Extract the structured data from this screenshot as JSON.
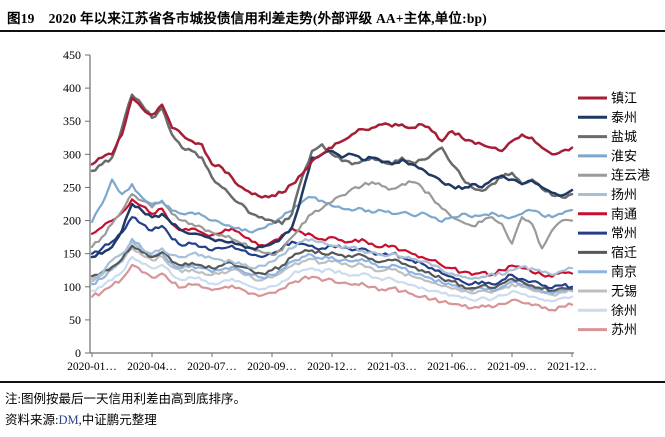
{
  "header": {
    "figure_no": "图19",
    "title": "2020 年以来江苏省各市城投债信用利差走势(外部评级 AA+主体,单位:bp)"
  },
  "footer": {
    "note": "注:图例按最后一天信用利差由高到底排序。",
    "source_prefix": "资料来源:",
    "source_dm": "DM",
    "source_suffix": ",中证鹏元整理"
  },
  "chart_data": {
    "type": "line",
    "title": "2020 年以来江苏省各市城投债信用利差走势(外部评级 AA+主体,单位:bp)",
    "ylabel": "bp",
    "ylim": [
      0,
      450
    ],
    "ytick_interval": 50,
    "grid": false,
    "legend_position": "right",
    "legend_sort": "按最后一天信用利差由高到低",
    "x_description": "49 个半月采样点,自 2020-01 至 2021-12",
    "x_tick_labels": [
      "2020-01…",
      "2020-04…",
      "2020-07…",
      "2020-09…",
      "2020-12…",
      "2021-03…",
      "2021-06…",
      "2021-09…",
      "2021-12…"
    ],
    "series": [
      {
        "key": "zhenjiang",
        "name": "镇江",
        "color": "#A51E36",
        "values": [
          285,
          295,
          300,
          330,
          385,
          370,
          360,
          375,
          340,
          330,
          320,
          315,
          285,
          280,
          265,
          250,
          240,
          235,
          238,
          242,
          255,
          270,
          290,
          300,
          310,
          320,
          330,
          338,
          340,
          345,
          342,
          345,
          340,
          345,
          335,
          320,
          335,
          325,
          320,
          315,
          310,
          305,
          320,
          330,
          325,
          310,
          300,
          305,
          310
        ]
      },
      {
        "key": "taizhou",
        "name": "泰州",
        "color": "#1F3864",
        "values": [
          145,
          150,
          160,
          185,
          225,
          215,
          205,
          210,
          195,
          185,
          180,
          178,
          172,
          170,
          168,
          163,
          158,
          160,
          165,
          175,
          190,
          240,
          295,
          300,
          305,
          295,
          300,
          292,
          295,
          288,
          285,
          292,
          285,
          278,
          268,
          258,
          252,
          248,
          255,
          250,
          262,
          268,
          262,
          255,
          260,
          250,
          242,
          238,
          246
        ]
      },
      {
        "key": "yancheng",
        "name": "盐城",
        "color": "#6B6B6B",
        "values": [
          275,
          285,
          295,
          340,
          390,
          375,
          355,
          370,
          330,
          310,
          305,
          295,
          265,
          250,
          235,
          225,
          210,
          205,
          200,
          195,
          210,
          265,
          305,
          315,
          300,
          290,
          285,
          290,
          295,
          290,
          285,
          295,
          288,
          292,
          300,
          310,
          285,
          265,
          250,
          245,
          255,
          265,
          272,
          255,
          262,
          248,
          238,
          235,
          240
        ]
      },
      {
        "key": "huaian",
        "name": "淮安",
        "color": "#7DA7CC",
        "values": [
          198,
          225,
          262,
          240,
          255,
          235,
          225,
          230,
          215,
          210,
          212,
          208,
          200,
          195,
          190,
          185,
          182,
          188,
          195,
          205,
          215,
          228,
          235,
          230,
          222,
          218,
          215,
          218,
          212,
          215,
          210,
          212,
          208,
          212,
          205,
          198,
          205,
          210,
          205,
          208,
          212,
          208,
          205,
          210,
          215,
          208,
          205,
          210,
          216
        ]
      },
      {
        "key": "lianyungang",
        "name": "连云港",
        "color": "#9A9A9A",
        "values": [
          160,
          175,
          195,
          215,
          240,
          230,
          220,
          228,
          210,
          200,
          195,
          190,
          182,
          178,
          172,
          165,
          158,
          152,
          148,
          155,
          175,
          195,
          210,
          218,
          228,
          238,
          248,
          252,
          258,
          252,
          248,
          255,
          258,
          250,
          235,
          218,
          205,
          198,
          192,
          198,
          205,
          195,
          165,
          205,
          195,
          158,
          185,
          200,
          200
        ]
      },
      {
        "key": "yangzhou",
        "name": "扬州",
        "color": "#A8C0D6",
        "values": [
          108,
          120,
          140,
          150,
          168,
          158,
          150,
          158,
          148,
          145,
          150,
          148,
          143,
          140,
          138,
          133,
          128,
          132,
          138,
          148,
          158,
          168,
          172,
          168,
          162,
          158,
          160,
          155,
          152,
          148,
          150,
          145,
          142,
          138,
          132,
          125,
          120,
          115,
          112,
          115,
          120,
          118,
          125,
          130,
          128,
          122,
          118,
          124,
          128
        ]
      },
      {
        "key": "nantong",
        "name": "南通",
        "color": "#C8102E",
        "values": [
          180,
          190,
          200,
          212,
          232,
          222,
          210,
          218,
          195,
          185,
          188,
          182,
          178,
          182,
          188,
          178,
          168,
          163,
          168,
          178,
          188,
          182,
          178,
          172,
          175,
          170,
          168,
          172,
          165,
          160,
          162,
          155,
          150,
          145,
          140,
          132,
          128,
          122,
          118,
          122,
          118,
          125,
          132,
          128,
          122,
          118,
          115,
          122,
          120
        ]
      },
      {
        "key": "changzhou",
        "name": "常州",
        "color": "#243E8B",
        "values": [
          150,
          158,
          168,
          182,
          205,
          195,
          185,
          192,
          172,
          162,
          165,
          160,
          155,
          158,
          162,
          155,
          148,
          145,
          150,
          158,
          168,
          165,
          162,
          158,
          162,
          158,
          155,
          158,
          152,
          148,
          150,
          145,
          140,
          135,
          128,
          120,
          115,
          108,
          104,
          108,
          104,
          110,
          118,
          112,
          108,
          102,
          98,
          102,
          100
        ]
      },
      {
        "key": "suqian",
        "name": "宿迁",
        "color": "#575757",
        "values": [
          116,
          122,
          130,
          142,
          162,
          152,
          145,
          152,
          138,
          132,
          136,
          132,
          128,
          132,
          136,
          130,
          124,
          120,
          125,
          132,
          145,
          152,
          155,
          150,
          152,
          148,
          145,
          148,
          142,
          138,
          140,
          135,
          130,
          125,
          118,
          112,
          108,
          102,
          98,
          102,
          98,
          105,
          112,
          108,
          102,
          97,
          94,
          98,
          97
        ]
      },
      {
        "key": "nanjing",
        "name": "南京",
        "color": "#8DB4E2",
        "values": [
          104,
          112,
          126,
          140,
          172,
          158,
          145,
          152,
          135,
          128,
          132,
          128,
          122,
          126,
          130,
          124,
          118,
          114,
          118,
          126,
          138,
          145,
          148,
          142,
          145,
          140,
          138,
          142,
          135,
          130,
          133,
          128,
          122,
          118,
          112,
          106,
          102,
          97,
          94,
          98,
          94,
          100,
          108,
          103,
          98,
          94,
          90,
          95,
          95
        ]
      },
      {
        "key": "wuxi",
        "name": "无锡",
        "color": "#BFBFBF",
        "values": [
          112,
          118,
          128,
          138,
          158,
          148,
          140,
          146,
          130,
          122,
          126,
          122,
          118,
          122,
          126,
          120,
          114,
          110,
          114,
          122,
          132,
          138,
          142,
          136,
          138,
          134,
          130,
          134,
          128,
          124,
          126,
          121,
          116,
          112,
          106,
          101,
          97,
          93,
          90,
          94,
          91,
          97,
          104,
          100,
          95,
          91,
          88,
          92,
          93
        ]
      },
      {
        "key": "xuzhou",
        "name": "徐州",
        "color": "#CBDCF0",
        "values": [
          94,
          100,
          110,
          122,
          145,
          135,
          128,
          133,
          118,
          110,
          114,
          110,
          105,
          108,
          112,
          106,
          100,
          97,
          101,
          108,
          118,
          125,
          128,
          122,
          125,
          120,
          117,
          120,
          114,
          110,
          112,
          107,
          103,
          99,
          94,
          90,
          87,
          83,
          80,
          84,
          81,
          87,
          93,
          89,
          85,
          81,
          78,
          83,
          85
        ]
      },
      {
        "key": "suzhou",
        "name": "苏州",
        "color": "#D89598",
        "values": [
          85,
          92,
          102,
          112,
          133,
          122,
          114,
          120,
          106,
          99,
          103,
          99,
          95,
          98,
          102,
          96,
          90,
          87,
          91,
          97,
          106,
          112,
          115,
          109,
          111,
          106,
          103,
          106,
          100,
          96,
          98,
          93,
          89,
          85,
          81,
          77,
          74,
          71,
          68,
          72,
          69,
          74,
          80,
          76,
          72,
          68,
          65,
          70,
          73
        ]
      }
    ]
  }
}
